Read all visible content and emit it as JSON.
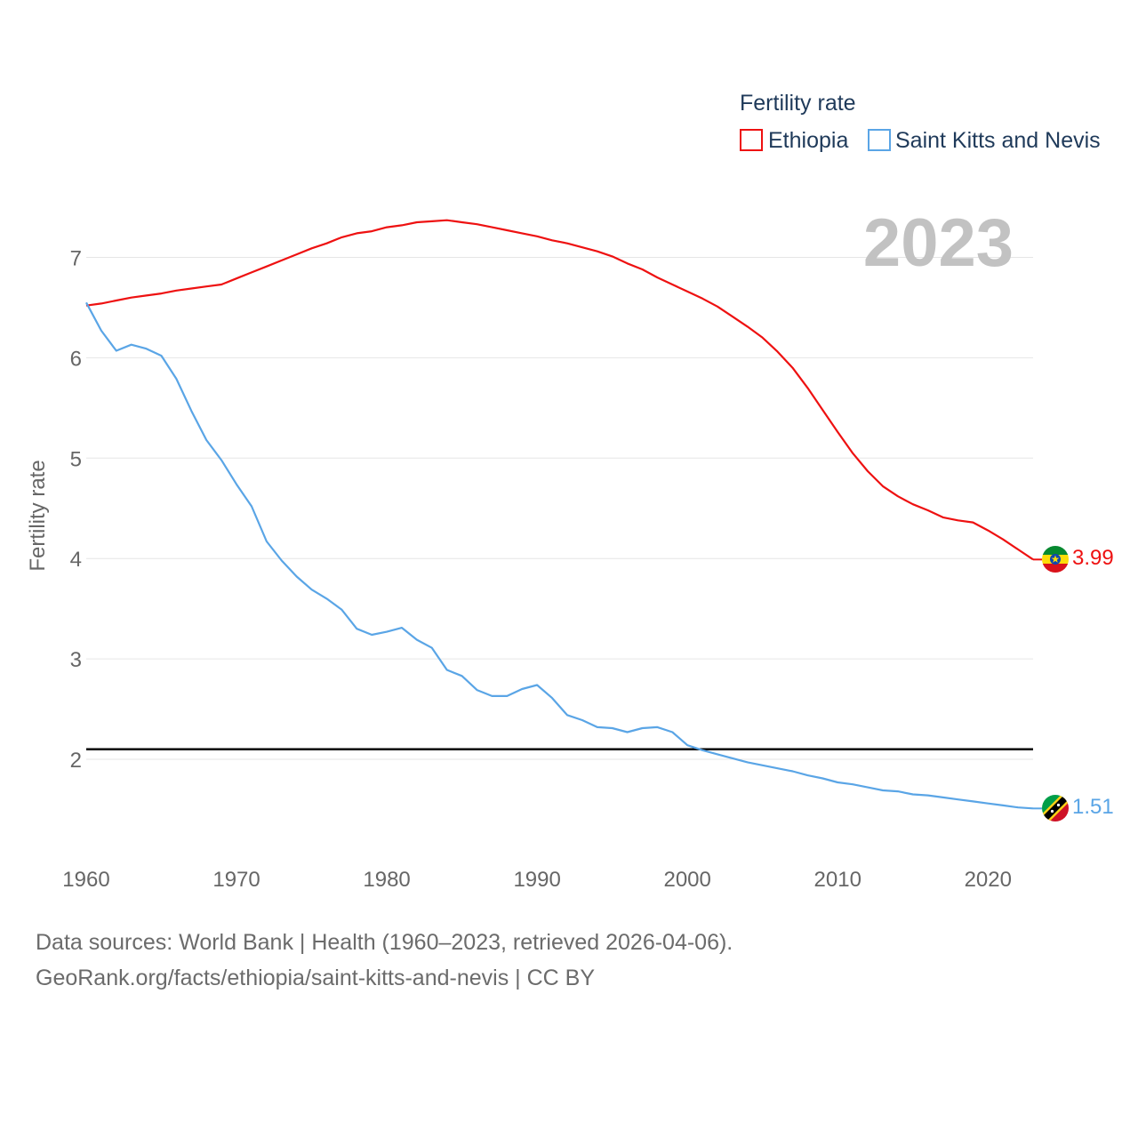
{
  "chart_data": {
    "type": "line",
    "legend_title": "Fertility rate",
    "ylabel": "Fertility rate",
    "xlabel": "",
    "year_display": "2023",
    "xlim": [
      1960,
      2023
    ],
    "ylim": [
      1,
      7.7
    ],
    "x_ticks": [
      1960,
      1970,
      1980,
      1990,
      2000,
      2010,
      2020
    ],
    "x_tick_labels": [
      "1960",
      "1970",
      "1980",
      "1990",
      "2000",
      "2010",
      "2020"
    ],
    "y_ticks": [
      2,
      3,
      4,
      5,
      6,
      7
    ],
    "y_tick_labels": [
      "2",
      "3",
      "4",
      "5",
      "6",
      "7"
    ],
    "reference_line": {
      "y": 2.1,
      "color": "#000000"
    },
    "x": [
      1960,
      1961,
      1962,
      1963,
      1964,
      1965,
      1966,
      1967,
      1968,
      1969,
      1970,
      1971,
      1972,
      1973,
      1974,
      1975,
      1976,
      1977,
      1978,
      1979,
      1980,
      1981,
      1982,
      1983,
      1984,
      1985,
      1986,
      1987,
      1988,
      1989,
      1990,
      1991,
      1992,
      1993,
      1994,
      1995,
      1996,
      1997,
      1998,
      1999,
      2000,
      2001,
      2002,
      2003,
      2004,
      2005,
      2006,
      2007,
      2008,
      2009,
      2010,
      2011,
      2012,
      2013,
      2014,
      2015,
      2016,
      2017,
      2018,
      2019,
      2020,
      2021,
      2022,
      2023
    ],
    "series": [
      {
        "name": "Ethiopia",
        "color": "#ee1111",
        "end_label": "3.99",
        "values": [
          6.52,
          6.54,
          6.57,
          6.6,
          6.62,
          6.64,
          6.67,
          6.69,
          6.71,
          6.73,
          6.79,
          6.85,
          6.91,
          6.97,
          7.03,
          7.09,
          7.14,
          7.2,
          7.24,
          7.26,
          7.3,
          7.32,
          7.35,
          7.36,
          7.37,
          7.35,
          7.33,
          7.3,
          7.27,
          7.24,
          7.21,
          7.17,
          7.14,
          7.1,
          7.06,
          7.01,
          6.94,
          6.88,
          6.8,
          6.73,
          6.66,
          6.59,
          6.51,
          6.41,
          6.31,
          6.2,
          6.06,
          5.9,
          5.7,
          5.48,
          5.26,
          5.05,
          4.87,
          4.72,
          4.62,
          4.54,
          4.48,
          4.41,
          4.38,
          4.36,
          4.28,
          4.19,
          4.09,
          3.99
        ]
      },
      {
        "name": "Saint Kitts and Nevis",
        "color": "#5aa5e6",
        "end_label": "1.51",
        "values": [
          6.55,
          6.27,
          6.07,
          6.13,
          6.09,
          6.02,
          5.79,
          5.47,
          5.18,
          4.98,
          4.74,
          4.52,
          4.17,
          3.98,
          3.82,
          3.69,
          3.6,
          3.49,
          3.3,
          3.24,
          3.27,
          3.31,
          3.19,
          3.11,
          2.89,
          2.83,
          2.69,
          2.63,
          2.63,
          2.7,
          2.74,
          2.61,
          2.44,
          2.39,
          2.32,
          2.31,
          2.27,
          2.31,
          2.32,
          2.27,
          2.14,
          2.09,
          2.05,
          2.01,
          1.97,
          1.94,
          1.91,
          1.88,
          1.84,
          1.81,
          1.77,
          1.75,
          1.72,
          1.69,
          1.68,
          1.65,
          1.64,
          1.62,
          1.6,
          1.58,
          1.56,
          1.54,
          1.52,
          1.51
        ]
      }
    ]
  },
  "footer": {
    "line1": "Data sources: World Bank | Health (1960–2023, retrieved 2026-04-06).",
    "line2": "GeoRank.org/facts/ethiopia/saint-kitts-and-nevis | CC BY"
  }
}
